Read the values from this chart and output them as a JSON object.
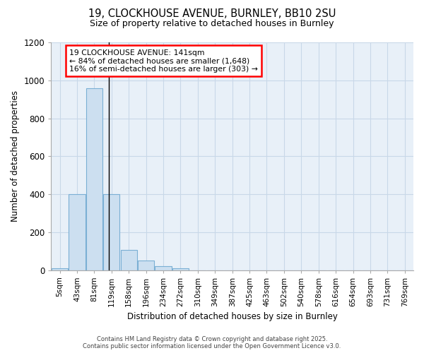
{
  "title_line1": "19, CLOCKHOUSE AVENUE, BURNLEY, BB10 2SU",
  "title_line2": "Size of property relative to detached houses in Burnley",
  "xlabel": "Distribution of detached houses by size in Burnley",
  "ylabel": "Number of detached properties",
  "bar_labels": [
    "5sqm",
    "43sqm",
    "81sqm",
    "119sqm",
    "158sqm",
    "196sqm",
    "234sqm",
    "272sqm",
    "310sqm",
    "349sqm",
    "387sqm",
    "425sqm",
    "463sqm",
    "502sqm",
    "540sqm",
    "578sqm",
    "616sqm",
    "654sqm",
    "693sqm",
    "731sqm",
    "769sqm"
  ],
  "bar_values": [
    10,
    400,
    960,
    400,
    105,
    50,
    20,
    10,
    0,
    0,
    0,
    0,
    0,
    0,
    0,
    0,
    0,
    0,
    0,
    0,
    0
  ],
  "bar_color": "#ccdff0",
  "bar_edgecolor": "#7aafd4",
  "annotation_line1": "19 CLOCKHOUSE AVENUE: 141sqm",
  "annotation_line2": "← 84% of detached houses are smaller (1,648)",
  "annotation_line3": "16% of semi-detached houses are larger (303) →",
  "vline_x": 2.85,
  "ylim": [
    0,
    1200
  ],
  "yticks": [
    0,
    200,
    400,
    600,
    800,
    1000,
    1200
  ],
  "fig_bg_color": "#ffffff",
  "plot_bg_color": "#e8f0f8",
  "grid_color": "#c8d8e8",
  "footer_line1": "Contains HM Land Registry data © Crown copyright and database right 2025.",
  "footer_line2": "Contains public sector information licensed under the Open Government Licence v3.0."
}
